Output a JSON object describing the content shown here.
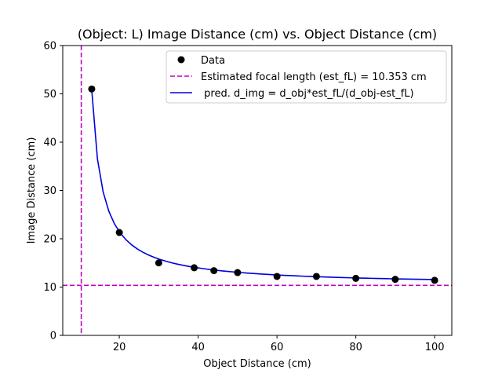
{
  "chart_data": {
    "type": "scatter",
    "title": "(Object: L) Image Distance (cm) vs. Object Distance (cm)",
    "xlabel": "Object Distance (cm)",
    "ylabel": "Image Distance (cm)",
    "xlim": [
      5.65,
      104.35
    ],
    "ylim": [
      0,
      60
    ],
    "xticks": [
      20,
      40,
      60,
      80,
      100
    ],
    "yticks": [
      0,
      10,
      20,
      30,
      40,
      50,
      60
    ],
    "grid": false,
    "legend_position": "top-right",
    "series": [
      {
        "name": "Data",
        "kind": "points",
        "color": "#000000",
        "x": [
          13,
          20,
          30,
          39,
          44,
          50,
          60,
          70,
          80,
          90,
          100
        ],
        "y": [
          51,
          21.3,
          15,
          14,
          13.4,
          13,
          12.2,
          12.2,
          11.8,
          11.6,
          11.4
        ]
      },
      {
        "name": "Estimated focal length (est_fL) = 10.353 cm",
        "kind": "reference-lines",
        "color": "#bf00bf",
        "value": 10.353
      },
      {
        "name": " pred. d_img = d_obj*est_fL/(d_obj-est_fL)",
        "kind": "curve",
        "color": "#0000dd",
        "focal_length": 10.353,
        "x_range": [
          13,
          100
        ]
      }
    ]
  }
}
